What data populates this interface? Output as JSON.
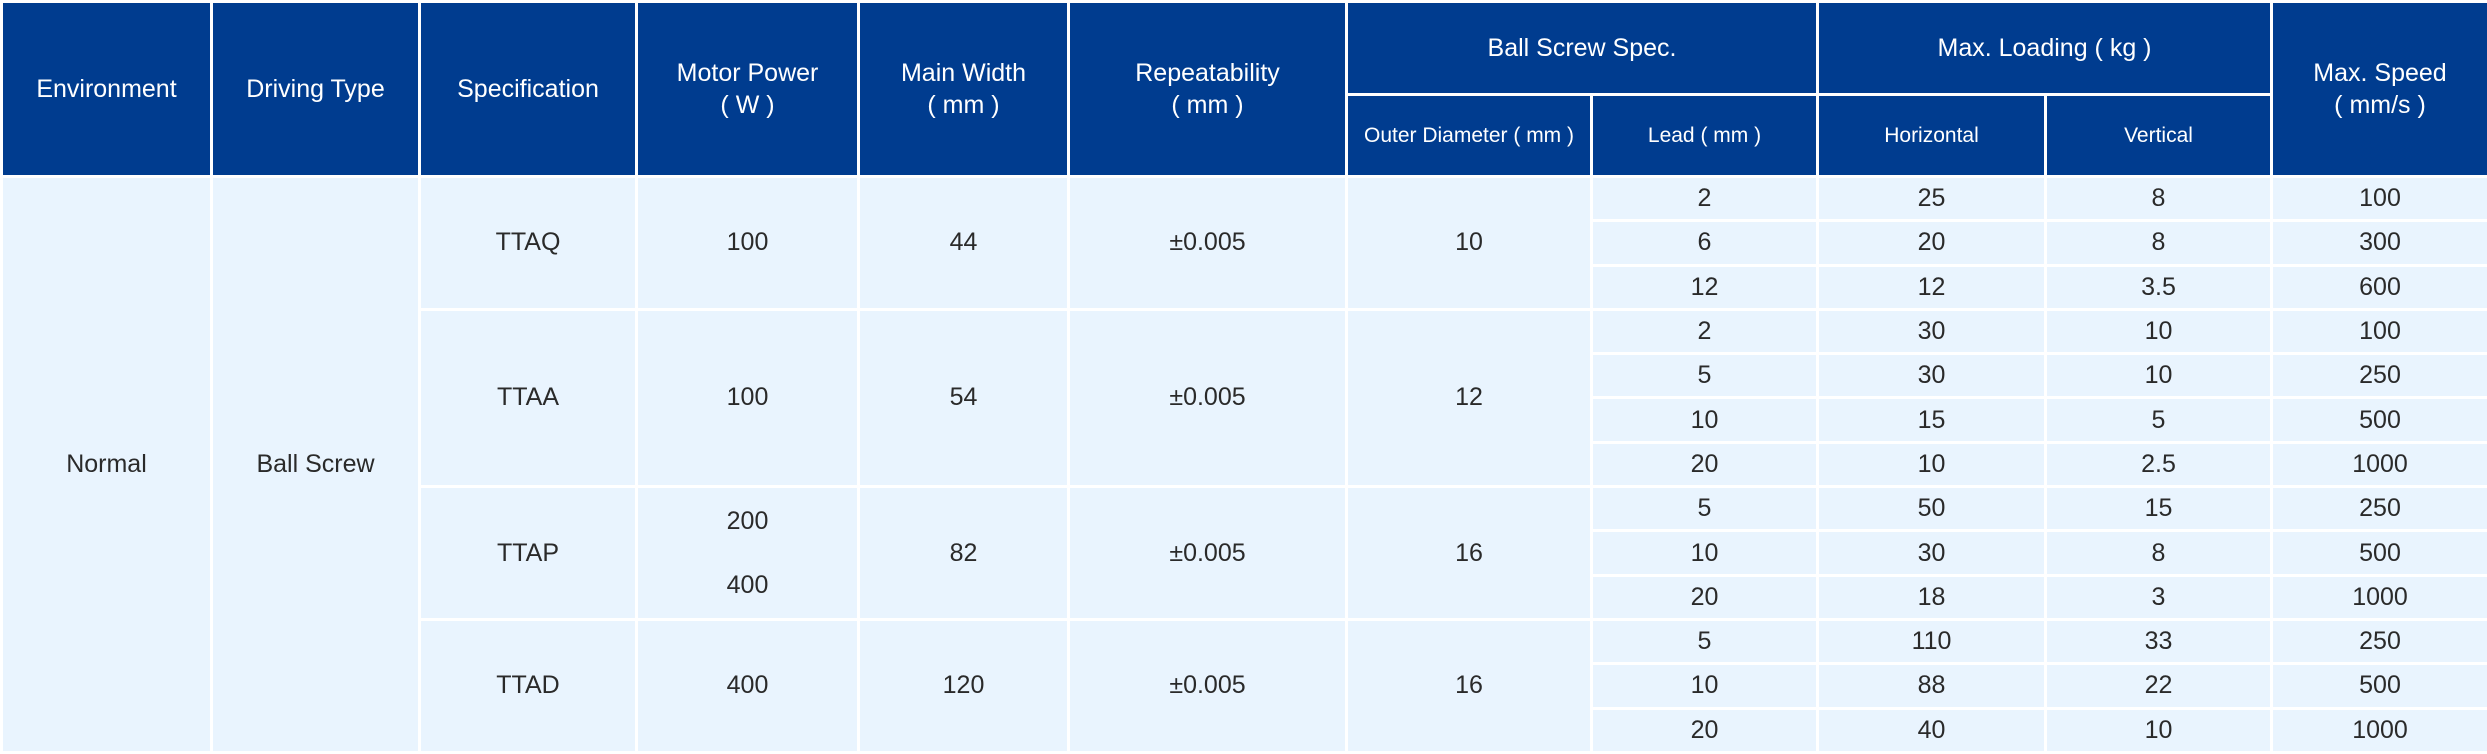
{
  "headers": {
    "environment": "Environment",
    "driving_type": "Driving Type",
    "specification": "Specification",
    "motor_power": "Motor Power",
    "motor_power_unit": "( W )",
    "main_width": "Main Width",
    "main_width_unit": "( mm )",
    "repeatability": "Repeatability",
    "repeatability_unit": "( mm )",
    "ball_screw_spec": "Ball Screw Spec.",
    "outer_diameter": "Outer Diameter ( mm )",
    "lead": "Lead ( mm )",
    "max_loading": "Max. Loading ( kg )",
    "horizontal": "Horizontal",
    "vertical": "Vertical",
    "max_speed": "Max. Speed",
    "max_speed_unit": "( mm/s )"
  },
  "environment": "Normal",
  "driving_type": "Ball Screw",
  "groups": [
    {
      "spec": "TTAQ",
      "motor_power": [
        "100"
      ],
      "main_width": "44",
      "repeatability": "±0.005",
      "outer_diameter": "10",
      "rows": [
        {
          "lead": "2",
          "horizontal": "25",
          "vertical": "8",
          "speed": "100"
        },
        {
          "lead": "6",
          "horizontal": "20",
          "vertical": "8",
          "speed": "300"
        },
        {
          "lead": "12",
          "horizontal": "12",
          "vertical": "3.5",
          "speed": "600"
        }
      ]
    },
    {
      "spec": "TTAA",
      "motor_power": [
        "100"
      ],
      "main_width": "54",
      "repeatability": "±0.005",
      "outer_diameter": "12",
      "rows": [
        {
          "lead": "2",
          "horizontal": "30",
          "vertical": "10",
          "speed": "100"
        },
        {
          "lead": "5",
          "horizontal": "30",
          "vertical": "10",
          "speed": "250"
        },
        {
          "lead": "10",
          "horizontal": "15",
          "vertical": "5",
          "speed": "500"
        },
        {
          "lead": "20",
          "horizontal": "10",
          "vertical": "2.5",
          "speed": "1000"
        }
      ]
    },
    {
      "spec": "TTAP",
      "motor_power": [
        "200",
        "400"
      ],
      "main_width": "82",
      "repeatability": "±0.005",
      "outer_diameter": "16",
      "rows": [
        {
          "lead": "5",
          "horizontal": "50",
          "vertical": "15",
          "speed": "250"
        },
        {
          "lead": "10",
          "horizontal": "30",
          "vertical": "8",
          "speed": "500"
        },
        {
          "lead": "20",
          "horizontal": "18",
          "vertical": "3",
          "speed": "1000"
        }
      ]
    },
    {
      "spec": "TTAD",
      "motor_power": [
        "400"
      ],
      "main_width": "120",
      "repeatability": "±0.005",
      "outer_diameter": "16",
      "rows": [
        {
          "lead": "5",
          "horizontal": "110",
          "vertical": "33",
          "speed": "250"
        },
        {
          "lead": "10",
          "horizontal": "88",
          "vertical": "22",
          "speed": "500"
        },
        {
          "lead": "20",
          "horizontal": "40",
          "vertical": "10",
          "speed": "1000"
        }
      ]
    }
  ]
}
